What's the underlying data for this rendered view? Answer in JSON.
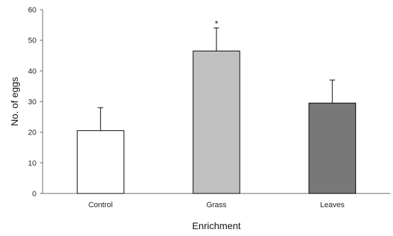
{
  "chart_data": {
    "type": "bar",
    "title": "",
    "xlabel": "Enrichment",
    "ylabel": "No.  of  eggs",
    "categories": [
      "Control",
      "Grass",
      "Leaves"
    ],
    "values": [
      20.5,
      46.5,
      29.5
    ],
    "error_upper": [
      7.5,
      7.5,
      7.5
    ],
    "bar_colors": [
      "#ffffff",
      "#c0c0c0",
      "#787878"
    ],
    "annotations": [
      "",
      "*",
      ""
    ],
    "ylim": [
      0,
      60
    ],
    "yticks": [
      "0",
      "10",
      "20",
      "30",
      "40",
      "50",
      "60"
    ],
    "grid": false,
    "legend": "none"
  }
}
